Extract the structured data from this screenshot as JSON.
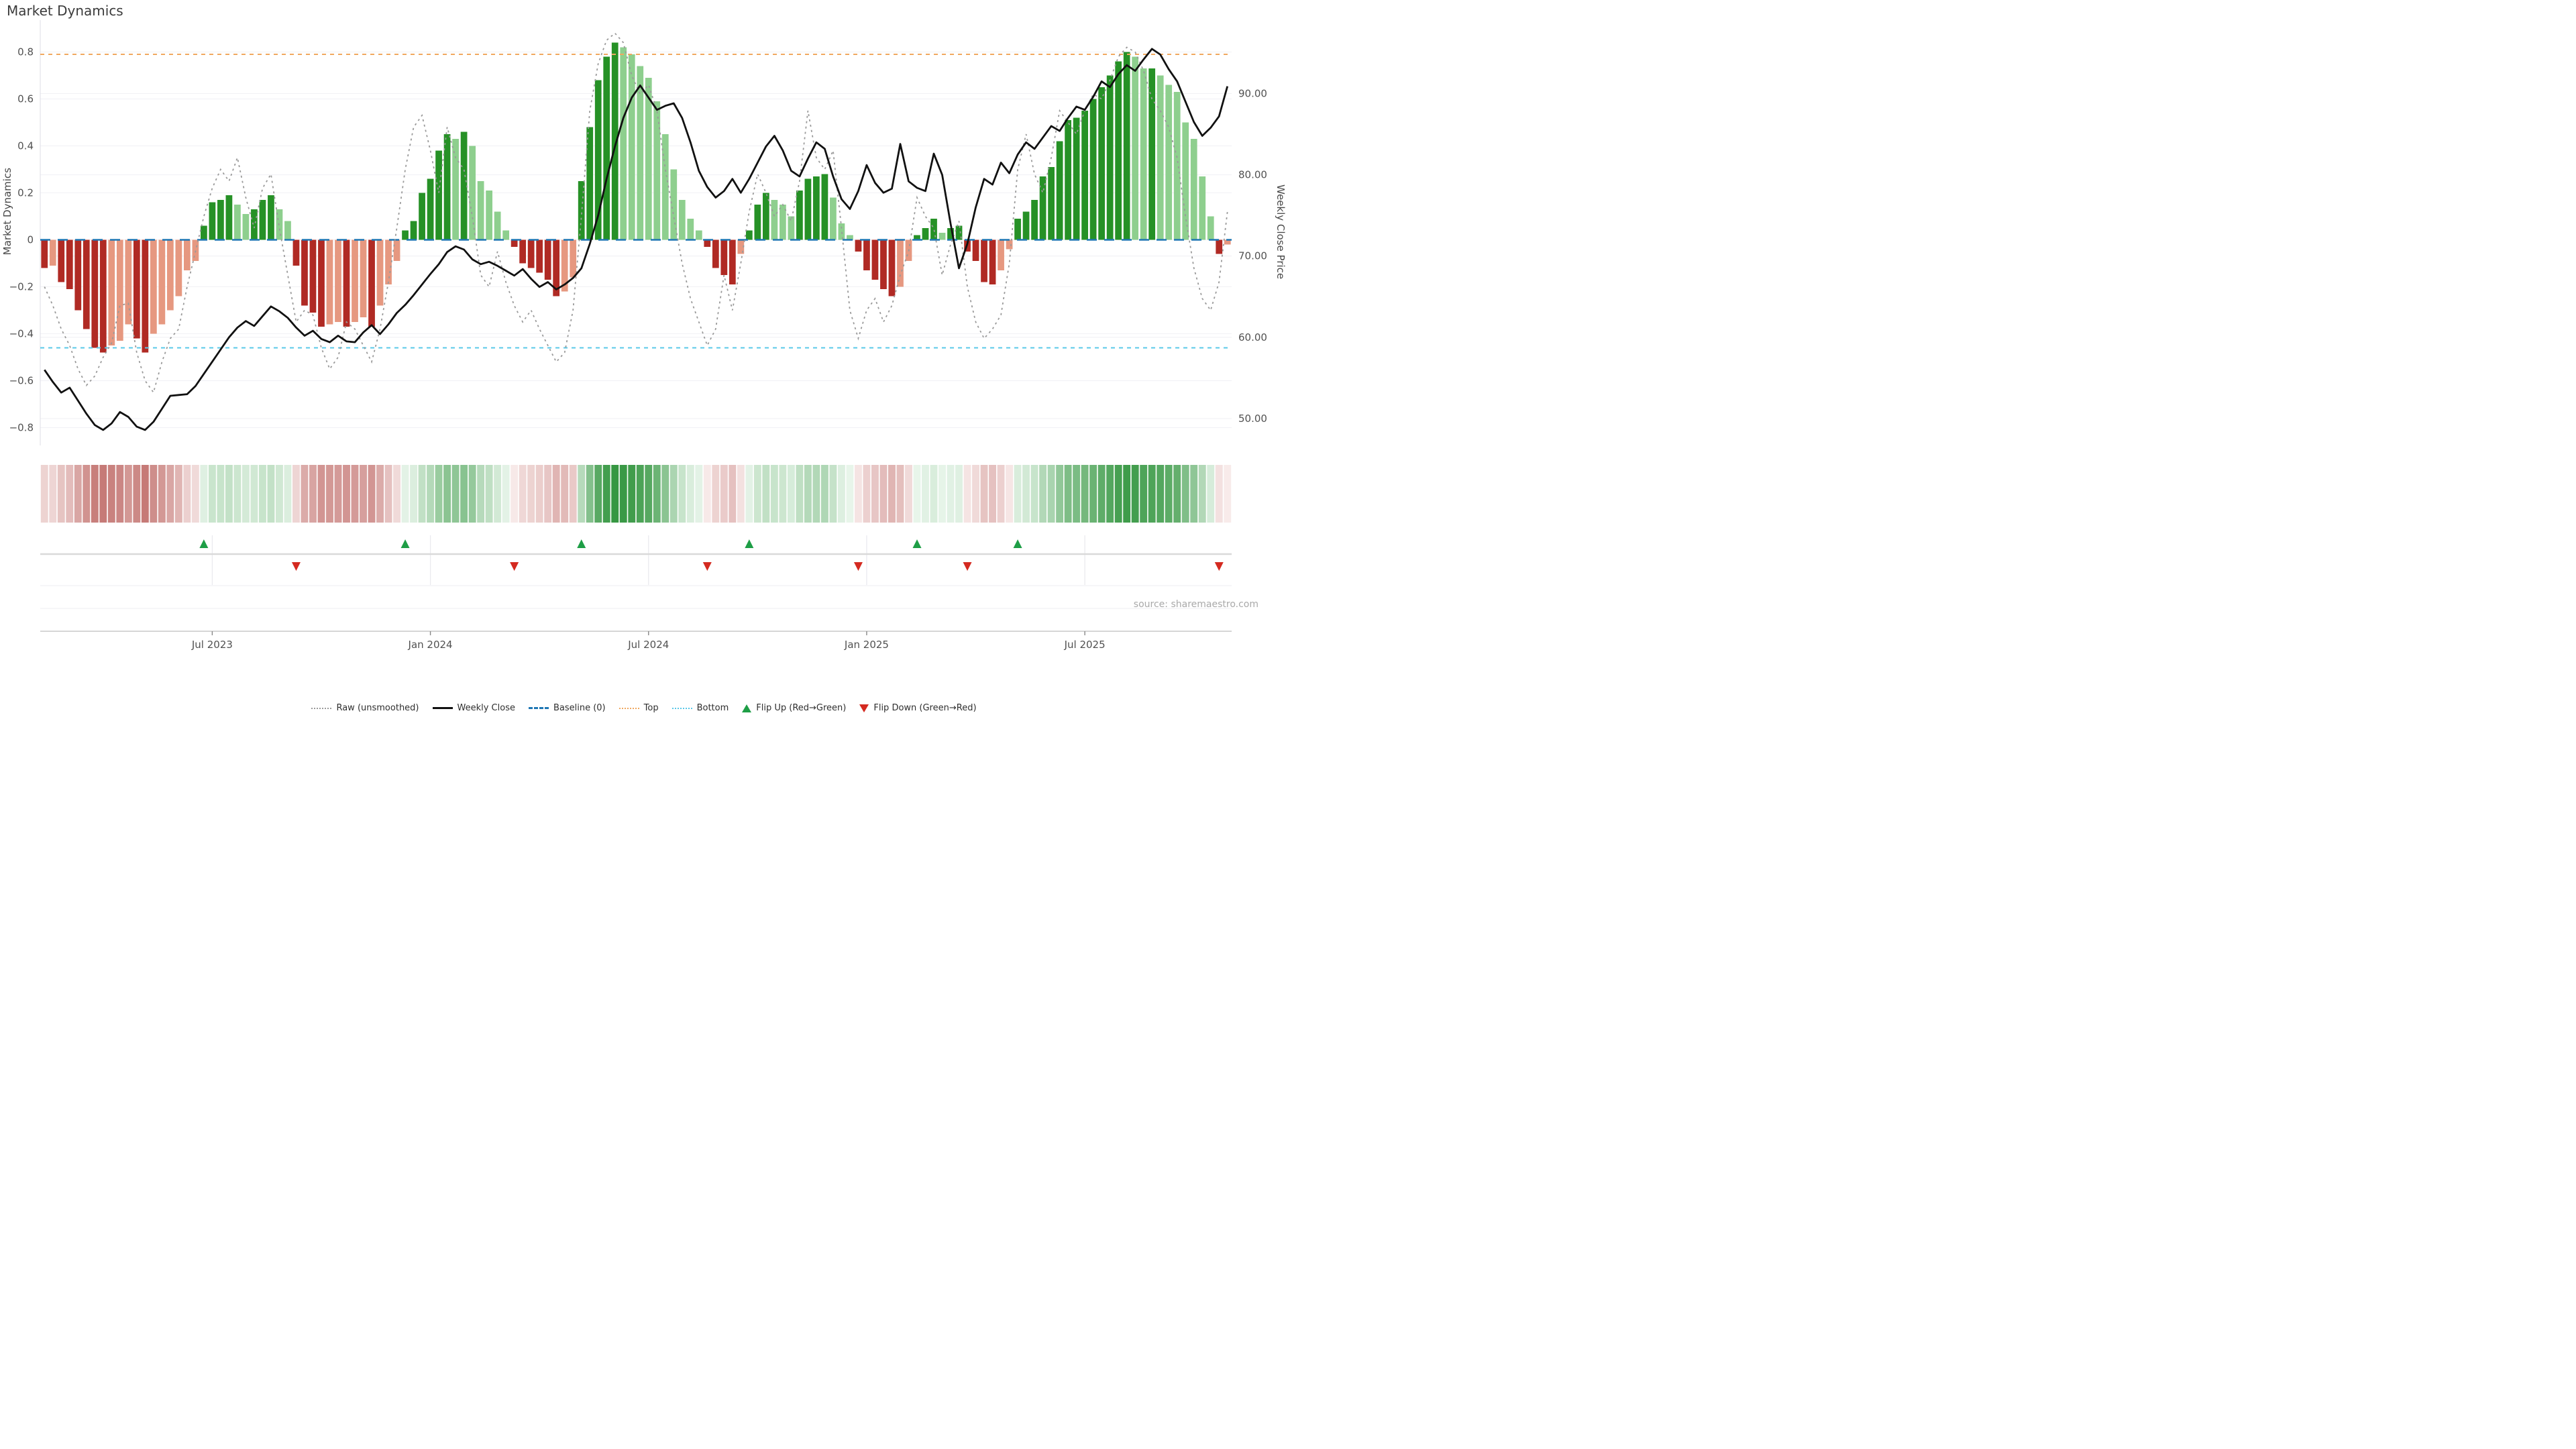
{
  "title": "Market Dynamics",
  "source": "source: sharemaestro.com",
  "axes": {
    "left_label": "Market Dynamics",
    "right_label": "Weekly Close Price",
    "left_tick_values": [
      0.8,
      0.6,
      0.4,
      0.2,
      0,
      -0.2,
      -0.4,
      -0.6,
      -0.8
    ],
    "left_tick_labels": [
      "0.8",
      "0.6",
      "0.4",
      "0.2",
      "0",
      "−0.2",
      "−0.4",
      "−0.6",
      "−0.8"
    ],
    "right_tick_values": [
      90,
      80,
      70,
      60,
      50
    ],
    "right_tick_labels": [
      "90.00",
      "80.00",
      "70.00",
      "60.00",
      "50.00"
    ]
  },
  "legend": {
    "items": [
      {
        "label": "Raw (unsmoothed)",
        "kind": "dotted-line",
        "color": "#9a9a9a"
      },
      {
        "label": "Weekly Close",
        "kind": "solid-line",
        "color": "#111111"
      },
      {
        "label": "Baseline (0)",
        "kind": "dashed-line",
        "color": "#1f77b4"
      },
      {
        "label": "Top",
        "kind": "dotted-line",
        "color": "#f0a860"
      },
      {
        "label": "Bottom",
        "kind": "dotted-line",
        "color": "#5ac8e8"
      },
      {
        "label": "Flip Up (Red→Green)",
        "kind": "triangle-up",
        "color": "#1e9e46"
      },
      {
        "label": "Flip Down (Green→Red)",
        "kind": "triangle-down",
        "color": "#d42a20"
      }
    ]
  },
  "colors": {
    "bar_green_intense": "#269126",
    "bar_green_fading": "#8ecf8e",
    "bar_red_intense": "#b02a24",
    "bar_red_fading": "#e69880",
    "price_line": "#111111",
    "raw_line": "#9a9a9a",
    "baseline": "#1f77b4",
    "top_line": "#f0a860",
    "bottom_line": "#5ac8e8",
    "grid": "#f1f1f5",
    "flip_up": "#1e9e46",
    "flip_down": "#d42a20"
  },
  "chart_data": {
    "type": "bar",
    "description": "Weekly market-dynamics oscillator bars with weekly close price line, raw unsmoothed oscillator, reference levels, heatmap strip and flip markers",
    "x_tick_labels": [
      "Jul 2023",
      "Jan 2024",
      "Jul 2024",
      "Jan 2025",
      "Jul 2025"
    ],
    "x_tick_week_index": [
      20,
      46,
      72,
      98,
      124
    ],
    "left_ylim": [
      -0.9,
      0.94
    ],
    "baseline": 0,
    "top_level": 0.79,
    "bottom_level": -0.46,
    "price_at_baseline": 72.0,
    "price_units_per_osc_unit": 28.9,
    "oscillator": [
      -0.12,
      -0.11,
      -0.18,
      -0.21,
      -0.3,
      -0.38,
      -0.46,
      -0.48,
      -0.45,
      -0.43,
      -0.36,
      -0.42,
      -0.48,
      -0.4,
      -0.36,
      -0.3,
      -0.24,
      -0.13,
      -0.09,
      0.06,
      0.16,
      0.17,
      0.19,
      0.15,
      0.11,
      0.13,
      0.17,
      0.19,
      0.13,
      0.08,
      -0.11,
      -0.28,
      -0.31,
      -0.37,
      -0.36,
      -0.35,
      -0.37,
      -0.35,
      -0.33,
      -0.37,
      -0.28,
      -0.19,
      -0.09,
      0.04,
      0.08,
      0.2,
      0.26,
      0.38,
      0.45,
      0.43,
      0.46,
      0.4,
      0.25,
      0.21,
      0.12,
      0.04,
      -0.03,
      -0.1,
      -0.12,
      -0.14,
      -0.17,
      -0.24,
      -0.22,
      -0.16,
      0.25,
      0.48,
      0.68,
      0.78,
      0.84,
      0.82,
      0.79,
      0.74,
      0.69,
      0.59,
      0.45,
      0.3,
      0.17,
      0.09,
      0.04,
      -0.03,
      -0.12,
      -0.15,
      -0.19,
      -0.06,
      0.04,
      0.15,
      0.2,
      0.17,
      0.15,
      0.1,
      0.21,
      0.26,
      0.27,
      0.28,
      0.18,
      0.07,
      0.02,
      -0.05,
      -0.13,
      -0.17,
      -0.21,
      -0.24,
      -0.2,
      -0.09,
      0.02,
      0.05,
      0.09,
      0.03,
      0.05,
      0.06,
      -0.05,
      -0.09,
      -0.18,
      -0.19,
      -0.13,
      -0.04,
      0.09,
      0.12,
      0.17,
      0.27,
      0.31,
      0.42,
      0.51,
      0.52,
      0.55,
      0.6,
      0.65,
      0.7,
      0.76,
      0.8,
      0.78,
      0.73,
      0.73,
      0.7,
      0.66,
      0.63,
      0.5,
      0.43,
      0.27,
      0.1,
      -0.06,
      -0.02
    ],
    "oscillator_intense": [
      1,
      0,
      1,
      1,
      1,
      1,
      1,
      1,
      0,
      0,
      0,
      1,
      1,
      0,
      0,
      0,
      0,
      0,
      0,
      1,
      1,
      1,
      1,
      0,
      0,
      1,
      1,
      1,
      0,
      0,
      1,
      1,
      1,
      1,
      0,
      0,
      1,
      0,
      0,
      1,
      0,
      0,
      0,
      1,
      1,
      1,
      1,
      1,
      1,
      0,
      1,
      0,
      0,
      0,
      0,
      0,
      1,
      1,
      1,
      1,
      1,
      1,
      0,
      0,
      1,
      1,
      1,
      1,
      1,
      0,
      0,
      0,
      0,
      0,
      0,
      0,
      0,
      0,
      0,
      1,
      1,
      1,
      1,
      0,
      1,
      1,
      1,
      0,
      0,
      0,
      1,
      1,
      1,
      1,
      0,
      0,
      0,
      1,
      1,
      1,
      1,
      1,
      0,
      0,
      1,
      1,
      1,
      0,
      1,
      1,
      1,
      1,
      1,
      1,
      0,
      0,
      1,
      1,
      1,
      1,
      1,
      1,
      1,
      1,
      1,
      1,
      1,
      1,
      1,
      1,
      0,
      0,
      1,
      0,
      0,
      0,
      0,
      0,
      0,
      0,
      1,
      0
    ],
    "weekly_close": [
      56.0,
      54.5,
      53.2,
      53.8,
      52.2,
      50.6,
      49.2,
      48.6,
      49.4,
      50.8,
      50.2,
      49.0,
      48.6,
      49.6,
      51.2,
      52.8,
      52.9,
      53.0,
      54.0,
      55.5,
      57.0,
      58.5,
      60.0,
      61.2,
      62.0,
      61.4,
      62.6,
      63.8,
      63.2,
      62.4,
      61.2,
      60.2,
      60.8,
      59.8,
      59.4,
      60.2,
      59.5,
      59.4,
      60.6,
      61.5,
      60.4,
      61.6,
      63.0,
      64.0,
      65.2,
      66.5,
      67.8,
      69.0,
      70.5,
      71.2,
      70.8,
      69.6,
      69.0,
      69.3,
      68.8,
      68.2,
      67.6,
      68.4,
      67.2,
      66.2,
      66.8,
      65.9,
      66.5,
      67.3,
      68.5,
      71.5,
      75.0,
      79.5,
      83.5,
      87.0,
      89.5,
      91.0,
      89.5,
      88.0,
      88.5,
      88.8,
      87.0,
      84.0,
      80.5,
      78.5,
      77.2,
      78.0,
      79.5,
      77.8,
      79.5,
      81.5,
      83.5,
      84.8,
      83.0,
      80.5,
      79.8,
      82.0,
      84.0,
      83.2,
      79.8,
      77.0,
      75.8,
      78.0,
      81.2,
      79.0,
      77.8,
      78.3,
      83.8,
      79.2,
      78.4,
      78.0,
      82.6,
      80.0,
      74.0,
      68.5,
      71.5,
      76.0,
      79.5,
      78.8,
      81.5,
      80.2,
      82.5,
      84.0,
      83.2,
      84.6,
      86.0,
      85.4,
      87.0,
      88.4,
      88.0,
      89.6,
      91.5,
      90.8,
      92.4,
      93.5,
      92.8,
      94.2,
      95.5,
      94.8,
      93.0,
      91.5,
      89.0,
      86.5,
      84.8,
      85.8,
      87.2,
      90.9
    ],
    "raw": [
      -0.2,
      -0.28,
      -0.38,
      -0.45,
      -0.55,
      -0.62,
      -0.58,
      -0.5,
      -0.44,
      -0.28,
      -0.27,
      -0.48,
      -0.6,
      -0.65,
      -0.52,
      -0.42,
      -0.38,
      -0.2,
      -0.05,
      0.1,
      0.22,
      0.3,
      0.25,
      0.35,
      0.18,
      0.05,
      0.22,
      0.28,
      0.05,
      -0.15,
      -0.35,
      -0.3,
      -0.32,
      -0.46,
      -0.55,
      -0.5,
      -0.35,
      -0.38,
      -0.45,
      -0.52,
      -0.38,
      -0.18,
      0.05,
      0.3,
      0.48,
      0.53,
      0.38,
      0.2,
      0.48,
      0.35,
      0.3,
      0.1,
      -0.15,
      -0.2,
      -0.05,
      -0.18,
      -0.28,
      -0.35,
      -0.3,
      -0.38,
      -0.45,
      -0.52,
      -0.48,
      -0.3,
      0.1,
      0.55,
      0.75,
      0.85,
      0.88,
      0.84,
      0.7,
      0.62,
      0.66,
      0.55,
      0.3,
      0.1,
      -0.1,
      -0.25,
      -0.35,
      -0.45,
      -0.38,
      -0.15,
      -0.3,
      -0.1,
      0.12,
      0.28,
      0.2,
      0.1,
      0.15,
      0.08,
      0.25,
      0.55,
      0.35,
      0.3,
      0.38,
      0.05,
      -0.3,
      -0.42,
      -0.3,
      -0.25,
      -0.35,
      -0.28,
      -0.15,
      -0.05,
      0.18,
      0.1,
      0.05,
      -0.15,
      -0.02,
      0.08,
      -0.2,
      -0.35,
      -0.42,
      -0.38,
      -0.32,
      -0.1,
      0.3,
      0.45,
      0.28,
      0.2,
      0.35,
      0.55,
      0.5,
      0.45,
      0.55,
      0.62,
      0.6,
      0.68,
      0.78,
      0.82,
      0.8,
      0.72,
      0.6,
      0.55,
      0.48,
      0.35,
      0.1,
      -0.12,
      -0.25,
      -0.3,
      -0.18,
      0.12
    ],
    "flip_up_weeks": [
      19,
      43,
      64,
      84,
      104,
      116
    ],
    "flip_down_weeks": [
      30,
      56,
      79,
      97,
      110,
      140
    ]
  }
}
